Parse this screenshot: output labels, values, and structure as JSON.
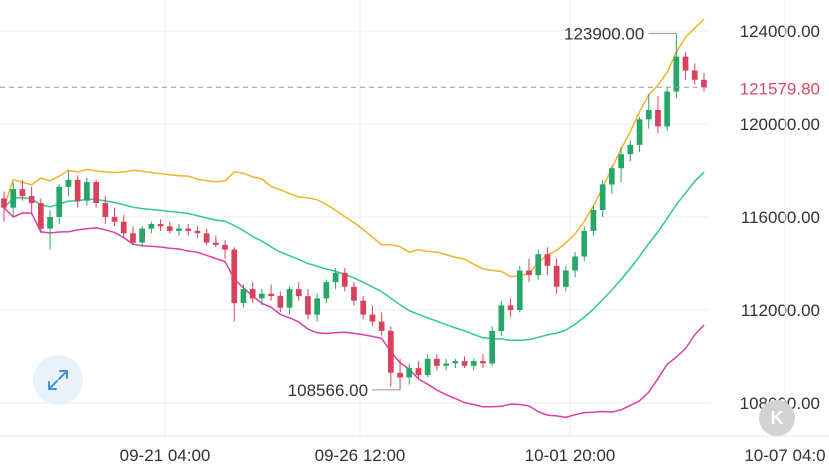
{
  "chart_data": {
    "type": "candlestick",
    "y_ticks": [
      "124000.00",
      "120000.00",
      "116000.00",
      "112000.00",
      "108000.00"
    ],
    "y_tick_values": [
      124000,
      120000,
      116000,
      112000,
      108000
    ],
    "x_ticks": [
      "09-21 04:00",
      "09-26 12:00",
      "10-01 20:00",
      "10-07 04:0"
    ],
    "current_price": {
      "label": "121579.80",
      "value": 121579.8,
      "line_style": "dashed"
    },
    "annotations": [
      {
        "label": "123900.00",
        "value": 123900,
        "kind": "high"
      },
      {
        "label": "108566.00",
        "value": 108566,
        "kind": "low"
      }
    ],
    "indicator": {
      "name": "bollinger",
      "upper_color": "#f0b428",
      "middle_color": "#2ec79a",
      "lower_color": "#dd3fa8"
    },
    "colors": {
      "up": "#26a667",
      "down": "#d9415d",
      "grid": "#eeeeee",
      "price_line": "#999999"
    },
    "candles": [
      [
        116800,
        117100,
        115800,
        116400
      ],
      [
        116400,
        117500,
        116000,
        117200
      ],
      [
        117200,
        117600,
        116700,
        116900
      ],
      [
        116900,
        117300,
        116100,
        116600
      ],
      [
        116600,
        116800,
        115300,
        115500
      ],
      [
        115500,
        116300,
        114600,
        116000
      ],
      [
        116000,
        117400,
        115700,
        117300
      ],
      [
        117300,
        118000,
        116900,
        117600
      ],
      [
        117600,
        117800,
        116400,
        116700
      ],
      [
        116700,
        117700,
        116500,
        117500
      ],
      [
        117500,
        117600,
        116400,
        116600
      ],
      [
        116600,
        116900,
        115700,
        116000
      ],
      [
        116000,
        116400,
        115600,
        115800
      ],
      [
        115800,
        116100,
        115100,
        115300
      ],
      [
        115300,
        115600,
        114800,
        114900
      ],
      [
        114900,
        115600,
        114700,
        115500
      ],
      [
        115500,
        115800,
        115300,
        115700
      ],
      [
        115700,
        115900,
        115400,
        115600
      ],
      [
        115600,
        115800,
        115300,
        115400
      ],
      [
        115400,
        115700,
        115200,
        115500
      ],
      [
        115500,
        115700,
        115200,
        115400
      ],
      [
        115400,
        115600,
        115100,
        115300
      ],
      [
        115300,
        115500,
        114800,
        114900
      ],
      [
        114900,
        115200,
        114700,
        114800
      ],
      [
        114800,
        115000,
        114200,
        114600
      ],
      [
        114600,
        114700,
        111500,
        112300
      ],
      [
        112300,
        113100,
        112100,
        112900
      ],
      [
        112900,
        113200,
        112300,
        112500
      ],
      [
        112500,
        112900,
        112200,
        112700
      ],
      [
        112700,
        113100,
        112400,
        112600
      ],
      [
        112600,
        112800,
        111900,
        112100
      ],
      [
        112100,
        113000,
        111800,
        112900
      ],
      [
        112900,
        113200,
        112400,
        112600
      ],
      [
        112600,
        112900,
        111600,
        111800
      ],
      [
        111800,
        112700,
        111500,
        112500
      ],
      [
        112500,
        113300,
        112300,
        113200
      ],
      [
        113200,
        113800,
        112900,
        113600
      ],
      [
        113600,
        113800,
        112800,
        113000
      ],
      [
        113000,
        113200,
        112200,
        112400
      ],
      [
        112400,
        112600,
        111600,
        111800
      ],
      [
        111800,
        112200,
        111300,
        111500
      ],
      [
        111500,
        111900,
        110900,
        111100
      ],
      [
        111100,
        111300,
        108700,
        109300
      ],
      [
        109300,
        109900,
        108566,
        109100
      ],
      [
        109100,
        109700,
        108800,
        109500
      ],
      [
        109500,
        109800,
        109000,
        109200
      ],
      [
        109200,
        110100,
        109100,
        109900
      ],
      [
        109900,
        110100,
        109400,
        109600
      ],
      [
        109600,
        109900,
        109400,
        109700
      ],
      [
        109700,
        109900,
        109500,
        109800
      ],
      [
        109800,
        110000,
        109500,
        109600
      ],
      [
        109600,
        109900,
        109400,
        109800
      ],
      [
        109800,
        110100,
        109500,
        109700
      ],
      [
        109700,
        111300,
        109600,
        111100
      ],
      [
        111100,
        112400,
        110900,
        112200
      ],
      [
        112200,
        112500,
        111700,
        112000
      ],
      [
        112000,
        113900,
        111900,
        113700
      ],
      [
        113700,
        114200,
        113200,
        113500
      ],
      [
        113500,
        114600,
        113300,
        114400
      ],
      [
        114400,
        114700,
        113500,
        113900
      ],
      [
        113900,
        114200,
        112700,
        113000
      ],
      [
        113000,
        113900,
        112800,
        113700
      ],
      [
        113700,
        114500,
        113400,
        114300
      ],
      [
        114300,
        115600,
        114100,
        115400
      ],
      [
        115400,
        116500,
        115200,
        116300
      ],
      [
        116300,
        117600,
        116000,
        117400
      ],
      [
        117400,
        118200,
        117000,
        118100
      ],
      [
        118100,
        119000,
        117500,
        118700
      ],
      [
        118700,
        119300,
        118400,
        119100
      ],
      [
        119100,
        120300,
        118800,
        120200
      ],
      [
        120200,
        121300,
        119800,
        120600
      ],
      [
        120600,
        121200,
        119600,
        119900
      ],
      [
        119900,
        121600,
        119700,
        121400
      ],
      [
        121400,
        123900,
        121100,
        122900
      ],
      [
        122900,
        123100,
        121900,
        122300
      ],
      [
        122300,
        122600,
        121700,
        121900
      ],
      [
        121900,
        122200,
        121400,
        121579.8
      ]
    ]
  },
  "ui": {
    "expand_icon": "expand-arrows-icon",
    "k_label": "K"
  }
}
